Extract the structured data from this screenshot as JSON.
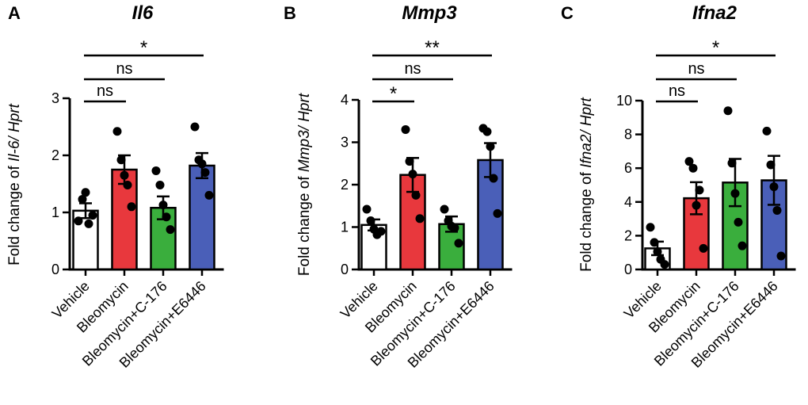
{
  "chart_data": [
    {
      "panel": "A",
      "type": "bar",
      "title": "Il6",
      "ylabel_prefix": "Fold change of ",
      "ylabel_gene": "Il-6/ Hprt",
      "categories": [
        "Vehicle",
        "Bleomycin",
        "Bleomycin+C-176",
        "Bleomycin+E6446"
      ],
      "colors": [
        "#ffffff",
        "#e8383d",
        "#3aae3d",
        "#4a5fb8"
      ],
      "means": [
        1.03,
        1.75,
        1.08,
        1.82
      ],
      "sem": [
        0.13,
        0.25,
        0.2,
        0.22
      ],
      "points": [
        [
          0.85,
          1.23,
          1.35,
          0.8,
          0.95
        ],
        [
          2.42,
          1.92,
          1.65,
          1.48,
          1.1
        ],
        [
          1.73,
          1.48,
          1.13,
          0.92,
          0.7
        ],
        [
          2.5,
          1.92,
          1.85,
          1.7,
          1.3
        ]
      ],
      "ylim": [
        0,
        3
      ],
      "yticks": [
        "0",
        "1",
        "2",
        "3"
      ],
      "comparisons": [
        {
          "to": 1,
          "label": "ns"
        },
        {
          "to": 2,
          "label": "ns"
        },
        {
          "to": 3,
          "label": "*"
        }
      ]
    },
    {
      "panel": "B",
      "type": "bar",
      "title": "Mmp3",
      "ylabel_prefix": "Fold change of ",
      "ylabel_gene": "Mmp3/ Hprt",
      "categories": [
        "Vehicle",
        "Bleomycin",
        "Bleomycin+C-176",
        "Bleomycin+E6446"
      ],
      "colors": [
        "#ffffff",
        "#e8383d",
        "#3aae3d",
        "#4a5fb8"
      ],
      "means": [
        1.05,
        2.23,
        1.07,
        2.58
      ],
      "sem": [
        0.13,
        0.4,
        0.18,
        0.4
      ],
      "points": [
        [
          1.42,
          1.15,
          0.95,
          0.82,
          0.9
        ],
        [
          3.3,
          2.55,
          2.25,
          1.75,
          1.2
        ],
        [
          1.42,
          1.15,
          1.02,
          0.98,
          0.62
        ],
        [
          3.33,
          3.25,
          2.9,
          2.15,
          1.32
        ]
      ],
      "ylim": [
        0,
        4
      ],
      "yticks": [
        "0",
        "1",
        "2",
        "3",
        "4"
      ],
      "comparisons": [
        {
          "to": 1,
          "label": "*"
        },
        {
          "to": 2,
          "label": "ns"
        },
        {
          "to": 3,
          "label": "**"
        }
      ]
    },
    {
      "panel": "C",
      "type": "bar",
      "title": "Ifna2",
      "ylabel_prefix": "Fold change of ",
      "ylabel_gene": "Ifna2/ Hprt",
      "categories": [
        "Vehicle",
        "Bleomycin",
        "Bleomycin+C-176",
        "Bleomycin+E6446"
      ],
      "colors": [
        "#ffffff",
        "#e8383d",
        "#3aae3d",
        "#4a5fb8"
      ],
      "means": [
        1.25,
        4.22,
        5.15,
        5.28
      ],
      "sem": [
        0.4,
        0.95,
        1.4,
        1.45
      ],
      "points": [
        [
          2.5,
          1.6,
          1.05,
          0.6,
          0.3
        ],
        [
          6.4,
          6.0,
          3.8,
          4.7,
          1.25
        ],
        [
          9.4,
          6.3,
          4.5,
          2.8,
          1.4
        ],
        [
          8.2,
          6.2,
          4.9,
          3.5,
          0.8
        ]
      ],
      "ylim": [
        0,
        10
      ],
      "yticks": [
        "0",
        "2",
        "4",
        "6",
        "8",
        "10"
      ],
      "comparisons": [
        {
          "to": 1,
          "label": "ns"
        },
        {
          "to": 2,
          "label": "ns"
        },
        {
          "to": 3,
          "label": "*"
        }
      ]
    }
  ]
}
